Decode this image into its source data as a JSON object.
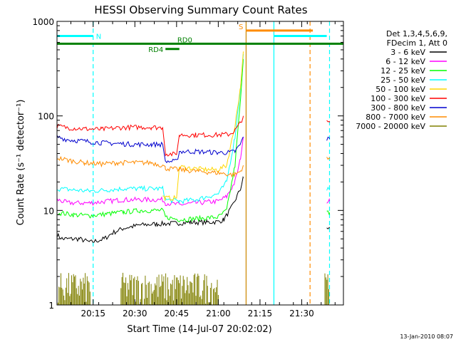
{
  "chart_data": {
    "type": "line",
    "title": "HESSI Observing Summary Count Rates",
    "xlabel": "Start Time (14-Jul-07 20:02:02)",
    "ylabel": "Count Rate (s⁻¹ detector⁻¹)",
    "y_scale": "log",
    "xlim": [
      "20:02",
      "21:45"
    ],
    "ylim": [
      1,
      1000
    ],
    "x_ticks": [
      "20:15",
      "20:30",
      "20:45",
      "21:00",
      "21:15",
      "21:30"
    ],
    "y_ticks": [
      "1",
      "10",
      "100",
      "1000"
    ],
    "footer": "13-Jan-2010 08:07",
    "legend": {
      "placement": "right",
      "header": [
        "Det 1,3,4,5,6,9,",
        "FDecim 1, Att 0"
      ]
    },
    "series": [
      {
        "name": "3 - 6 keV",
        "color": "#000000",
        "points": [
          [
            "20:02",
            5.5
          ],
          [
            "20:04",
            5.0
          ],
          [
            "20:10",
            5.0
          ],
          [
            "20:14",
            4.6
          ],
          [
            "20:19",
            5.0
          ],
          [
            "20:22",
            5.8
          ],
          [
            "20:26",
            6.5
          ],
          [
            "20:32",
            7.0
          ],
          [
            "20:38",
            7.2
          ],
          [
            "20:44",
            7.3
          ],
          [
            "20:50",
            7.5
          ],
          [
            "20:56",
            7.5
          ],
          [
            "21:00",
            7.6
          ],
          [
            "21:02",
            8.0
          ],
          [
            "21:05",
            11
          ],
          [
            "21:08",
            17
          ],
          [
            "21:09",
            22
          ]
        ],
        "tail": [
          [
            "21:39",
            6.5
          ],
          [
            "21:40",
            6.5
          ]
        ]
      },
      {
        "name": "6 - 12 keV",
        "color": "#ff00ff",
        "points": [
          [
            "20:02",
            13
          ],
          [
            "20:06",
            12
          ],
          [
            "20:14",
            12
          ],
          [
            "20:20",
            12.5
          ],
          [
            "20:26",
            13
          ],
          [
            "20:32",
            13
          ],
          [
            "20:40",
            13
          ],
          [
            "20:41",
            12
          ],
          [
            "20:46",
            11.5
          ],
          [
            "20:52",
            12
          ],
          [
            "21:00",
            12.5
          ],
          [
            "21:03",
            14
          ],
          [
            "21:06",
            20
          ],
          [
            "21:08",
            35
          ],
          [
            "21:09",
            60
          ]
        ],
        "tail": [
          [
            "21:39",
            12.5
          ],
          [
            "21:40",
            12.5
          ]
        ]
      },
      {
        "name": "12 - 25 keV",
        "color": "#00ff00",
        "points": [
          [
            "20:02",
            9.5
          ],
          [
            "20:08",
            9.0
          ],
          [
            "20:14",
            8.8
          ],
          [
            "20:20",
            9.2
          ],
          [
            "20:26",
            9.6
          ],
          [
            "20:32",
            10
          ],
          [
            "20:40",
            10
          ],
          [
            "20:41",
            8.5
          ],
          [
            "20:46",
            8.0
          ],
          [
            "20:52",
            8.2
          ],
          [
            "21:00",
            8.5
          ],
          [
            "21:03",
            10
          ],
          [
            "21:06",
            30
          ],
          [
            "21:08",
            150
          ],
          [
            "21:09",
            400
          ]
        ],
        "tail": [
          [
            "21:39",
            9.5
          ],
          [
            "21:40",
            9.5
          ]
        ]
      },
      {
        "name": "25 - 50 keV",
        "color": "#00ffff",
        "points": [
          [
            "20:02",
            17
          ],
          [
            "20:08",
            16.5
          ],
          [
            "20:14",
            16
          ],
          [
            "20:20",
            16.5
          ],
          [
            "20:26",
            17
          ],
          [
            "20:32",
            17
          ],
          [
            "20:40",
            17
          ],
          [
            "20:41",
            13
          ],
          [
            "20:46",
            12.5
          ],
          [
            "20:52",
            13
          ],
          [
            "21:00",
            15
          ],
          [
            "21:03",
            20
          ],
          [
            "21:06",
            60
          ],
          [
            "21:08",
            200
          ],
          [
            "21:09",
            450
          ]
        ],
        "tail": [
          [
            "21:39",
            17
          ],
          [
            "21:40",
            17
          ]
        ]
      },
      {
        "name": "50 - 100 keV",
        "color": "#ffd700",
        "points": [
          [
            "20:40",
            14
          ],
          [
            "20:41",
            13.5
          ],
          [
            "20:45",
            13.5
          ],
          [
            "20:46",
            29
          ],
          [
            "20:50",
            28
          ],
          [
            "20:56",
            27
          ],
          [
            "21:00",
            27
          ],
          [
            "21:03",
            30
          ],
          [
            "21:06",
            80
          ],
          [
            "21:08",
            200
          ],
          [
            "21:09",
            480
          ]
        ],
        "tail": []
      },
      {
        "name": "100 - 300 keV",
        "color": "#ff0000",
        "points": [
          [
            "20:02",
            78
          ],
          [
            "20:06",
            75
          ],
          [
            "20:12",
            73
          ],
          [
            "20:18",
            72
          ],
          [
            "20:24",
            75
          ],
          [
            "20:30",
            76
          ],
          [
            "20:36",
            76
          ],
          [
            "20:40",
            75
          ],
          [
            "20:41",
            40
          ],
          [
            "20:45",
            39
          ],
          [
            "20:46",
            63
          ],
          [
            "20:52",
            63
          ],
          [
            "21:00",
            63
          ],
          [
            "21:04",
            64
          ],
          [
            "21:06",
            70
          ],
          [
            "21:08",
            85
          ],
          [
            "21:09",
            100
          ]
        ],
        "tail": [
          [
            "21:39",
            85
          ],
          [
            "21:40",
            85
          ]
        ]
      },
      {
        "name": "300 - 800 keV",
        "color": "#0000cd",
        "points": [
          [
            "20:02",
            60
          ],
          [
            "20:06",
            56
          ],
          [
            "20:12",
            54
          ],
          [
            "20:18",
            52
          ],
          [
            "20:24",
            51
          ],
          [
            "20:30",
            50
          ],
          [
            "20:36",
            50
          ],
          [
            "20:40",
            50
          ],
          [
            "20:41",
            33
          ],
          [
            "20:45",
            33
          ],
          [
            "20:46",
            42
          ],
          [
            "20:52",
            42
          ],
          [
            "21:00",
            41
          ],
          [
            "21:04",
            41
          ],
          [
            "21:06",
            42
          ],
          [
            "21:08",
            50
          ],
          [
            "21:09",
            60
          ]
        ],
        "tail": [
          [
            "21:39",
            57
          ],
          [
            "21:40",
            57
          ]
        ]
      },
      {
        "name": "800 - 7000 keV",
        "color": "#ff8c00",
        "points": [
          [
            "20:02",
            36
          ],
          [
            "20:06",
            34
          ],
          [
            "20:12",
            32
          ],
          [
            "20:18",
            31
          ],
          [
            "20:24",
            32
          ],
          [
            "20:30",
            32
          ],
          [
            "20:36",
            32
          ],
          [
            "20:40",
            30
          ],
          [
            "20:41",
            28
          ],
          [
            "20:46",
            27
          ],
          [
            "20:52",
            26
          ],
          [
            "21:00",
            25
          ],
          [
            "21:04",
            24
          ],
          [
            "21:06",
            24
          ],
          [
            "21:08",
            26
          ],
          [
            "21:09",
            30
          ]
        ],
        "tail": [
          [
            "21:39",
            35
          ],
          [
            "21:40",
            35
          ]
        ]
      },
      {
        "name": "7000 - 20000 keV",
        "color": "#808000",
        "bands": [
          [
            "20:02",
            "20:14"
          ],
          [
            "20:25",
            "21:00"
          ],
          [
            "21:38",
            "21:40"
          ]
        ],
        "level_range": [
          1,
          2.2
        ]
      }
    ],
    "annotations": {
      "bars": [
        {
          "label": "N",
          "color": "#00ffff",
          "from": "20:02",
          "to": "20:15",
          "y": 700
        },
        {
          "label": "",
          "color": "#00ffff",
          "from": "21:20",
          "to": "21:39",
          "y": 700
        },
        {
          "label": "S",
          "color": "#ff8c00",
          "from": "21:10",
          "to": "21:34",
          "y": 800
        },
        {
          "label": "RD0",
          "color": "#008000",
          "from": "20:02",
          "to": "21:45",
          "y": 580
        },
        {
          "label": "RD4",
          "color": "#008000",
          "from": "20:41",
          "to": "20:46",
          "y": 510
        }
      ],
      "vlines": [
        {
          "t": "20:15",
          "color": "#00ffff",
          "style": "dashed"
        },
        {
          "t": "21:10",
          "color": "#cc8800",
          "style": "solid"
        },
        {
          "t": "21:20",
          "color": "#00ffff",
          "style": "solid"
        },
        {
          "t": "21:33",
          "color": "#ff8c00",
          "style": "dashed"
        },
        {
          "t": "21:40",
          "color": "#00ffff",
          "style": "dashed"
        }
      ]
    }
  }
}
